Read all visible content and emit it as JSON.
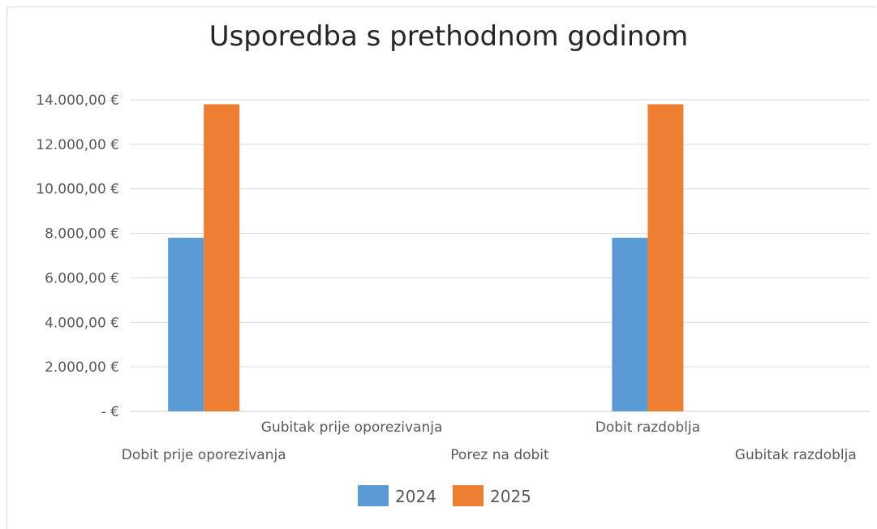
{
  "chart_data": {
    "type": "bar",
    "title": "Usporedba s prethodnom godinom",
    "xlabel": "",
    "ylabel": "",
    "categories": [
      "Dobit prije oporezivanja",
      "Gubitak prije oporezivanja",
      "Porez na dobit",
      "Dobit razdoblja",
      "Gubitak razdoblja"
    ],
    "series": [
      {
        "name": "2024",
        "color": "#5b9bd5",
        "values": [
          7800,
          0,
          0,
          7800,
          0
        ]
      },
      {
        "name": "2025",
        "color": "#ed7d31",
        "values": [
          13800,
          0,
          0,
          13800,
          0
        ]
      }
    ],
    "ylim": [
      0,
      14000
    ],
    "yticks": [
      {
        "value": 0,
        "label": "-  €"
      },
      {
        "value": 2000,
        "label": "2.000,00 €"
      },
      {
        "value": 4000,
        "label": "4.000,00 €"
      },
      {
        "value": 6000,
        "label": "6.000,00 €"
      },
      {
        "value": 8000,
        "label": "8.000,00 €"
      },
      {
        "value": 10000,
        "label": "10.000,00 €"
      },
      {
        "value": 12000,
        "label": "12.000,00 €"
      },
      {
        "value": 14000,
        "label": "14.000,00 €"
      }
    ],
    "grid": true,
    "legend": "bottom"
  }
}
